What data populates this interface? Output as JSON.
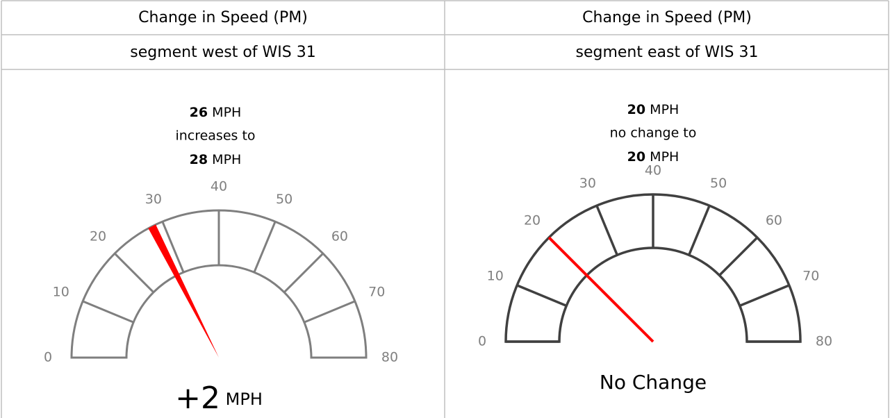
{
  "table": {
    "rows": [
      [
        "Change in Speed (PM)",
        "Change in Speed (PM)"
      ],
      [
        "segment west of WIS 31",
        "segment east of WIS 31"
      ]
    ]
  },
  "chart_data": [
    {
      "type": "gauge",
      "from": 26,
      "unit": "MPH",
      "verb": "increases to",
      "to": 28,
      "change": "+2",
      "change_unit": "MPH",
      "ylim": [
        0,
        80
      ],
      "yticks": [
        0,
        10,
        20,
        30,
        40,
        50,
        60,
        70,
        80
      ],
      "color": "#7f7f7f",
      "needle_color": "#ff0000"
    },
    {
      "type": "gauge",
      "from": 20,
      "unit": "MPH",
      "verb": "no change to",
      "to": 20,
      "change": "No Change",
      "ylim": [
        0,
        80
      ],
      "yticks": [
        0,
        10,
        20,
        30,
        40,
        50,
        60,
        70,
        80
      ],
      "color": "#404040",
      "needle_color": "#ff0000"
    }
  ]
}
